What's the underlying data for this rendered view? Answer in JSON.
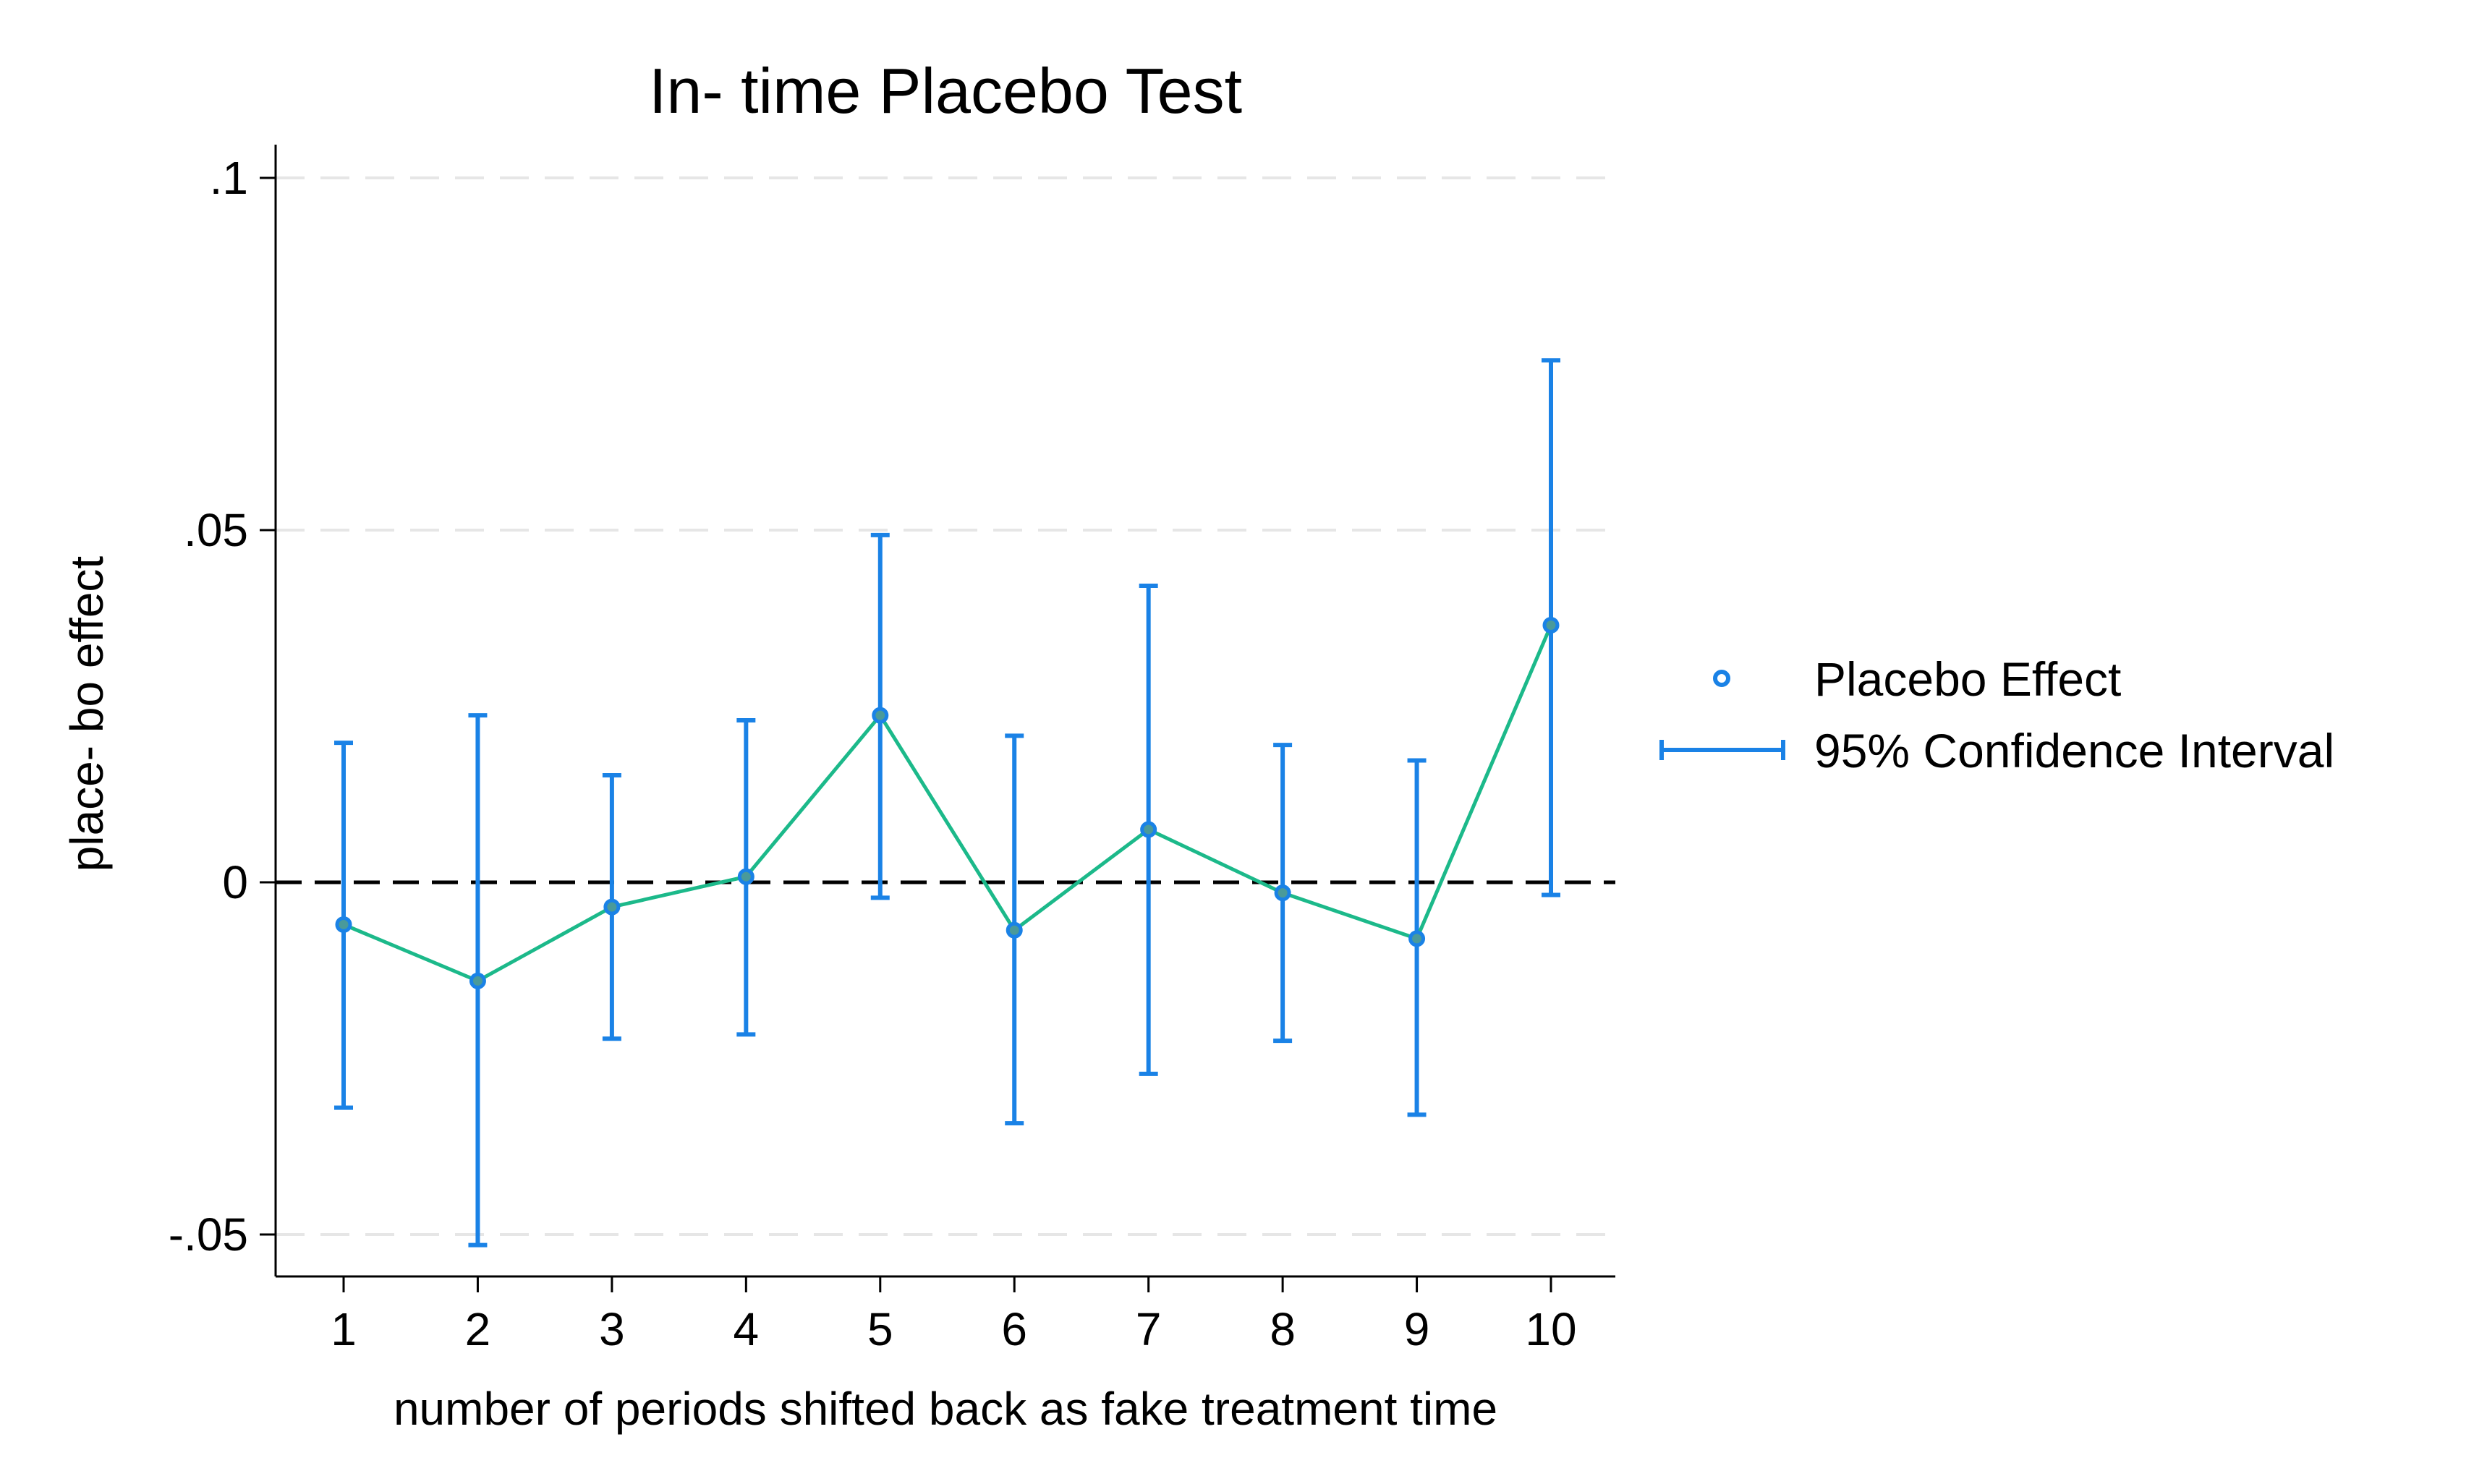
{
  "chart_data": {
    "type": "scatter",
    "title": "In- time Placebo Test",
    "xlabel": "number of periods shifted back as fake treatment time",
    "ylabel": "place- bo effect",
    "x": [
      1,
      2,
      3,
      4,
      5,
      6,
      7,
      8,
      9,
      10
    ],
    "x_tick_labels": [
      "1",
      "2",
      "3",
      "4",
      "5",
      "6",
      "7",
      "8",
      "9",
      "10"
    ],
    "xlim": [
      0.5,
      10.5
    ],
    "ylim": [
      -0.056,
      0.104
    ],
    "y_ticks": [
      {
        "value": -0.05,
        "label": "-.05"
      },
      {
        "value": 0,
        "label": "0"
      },
      {
        "value": 0.05,
        "label": ".05"
      },
      {
        "value": 0.1,
        "label": ".1"
      }
    ],
    "grid": true,
    "reference_line": 0,
    "series": [
      {
        "name": "Placebo Effect",
        "color": "#1a82e6",
        "line_color": "#1cb98a",
        "values": [
          -0.006,
          -0.014,
          -0.0035,
          0.0008,
          0.0237,
          -0.0068,
          0.0075,
          -0.0015,
          -0.008,
          0.0365
        ]
      },
      {
        "name": "95% Confidence Interval",
        "color": "#1a82e6",
        "lower": [
          -0.032,
          -0.0515,
          -0.0222,
          -0.0216,
          -0.0022,
          -0.0342,
          -0.0272,
          -0.0225,
          -0.033,
          -0.0018
        ],
        "upper": [
          0.0198,
          0.0237,
          0.0152,
          0.023,
          0.0493,
          0.0208,
          0.0421,
          0.0195,
          0.0173,
          0.0741
        ]
      }
    ],
    "legend_position": "right"
  }
}
